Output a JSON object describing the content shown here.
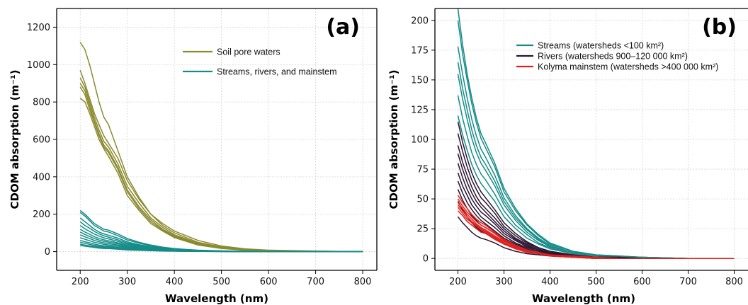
{
  "chart_data": [
    {
      "type": "line",
      "panel_label": "(a)",
      "xlabel": "Wavelength (nm)",
      "ylabel": "CDOM absorption (m⁻¹)",
      "xlim": [
        150,
        830
      ],
      "ylim": [
        -100,
        1300
      ],
      "xticks": [
        200,
        300,
        400,
        500,
        600,
        700,
        800
      ],
      "yticks": [
        0,
        200,
        400,
        600,
        800,
        1000,
        1200
      ],
      "grid": true,
      "legend_position": "top-right",
      "x": [
        200,
        210,
        220,
        230,
        240,
        250,
        260,
        280,
        300,
        325,
        350,
        375,
        400,
        450,
        500,
        550,
        600,
        700,
        800
      ],
      "series": [
        {
          "name": "Soil pore waters",
          "color": "#8a8a2e",
          "curves": [
            [
              1120,
              1080,
              1000,
              900,
              800,
              720,
              680,
              540,
              400,
              290,
              200,
              150,
              110,
              60,
              30,
              15,
              8,
              3,
              0
            ],
            [
              970,
              900,
              820,
              740,
              680,
              620,
              580,
              500,
              380,
              280,
              200,
              140,
              100,
              50,
              25,
              12,
              6,
              2,
              0
            ],
            [
              930,
              880,
              800,
              720,
              650,
              590,
              560,
              470,
              350,
              260,
              180,
              130,
              90,
              45,
              22,
              10,
              5,
              2,
              0
            ],
            [
              900,
              860,
              780,
              700,
              630,
              570,
              540,
              450,
              330,
              240,
              170,
              120,
              85,
              40,
              20,
              9,
              4,
              1,
              0
            ],
            [
              880,
              840,
              760,
              690,
              620,
              560,
              530,
              440,
              320,
              230,
              160,
              115,
              80,
              38,
              18,
              8,
              4,
              1,
              0
            ],
            [
              820,
              800,
              740,
              670,
              600,
              550,
              510,
              420,
              300,
              220,
              150,
              110,
              75,
              35,
              17,
              8,
              4,
              1,
              0
            ]
          ]
        },
        {
          "name": "Streams, rivers, and mainstem",
          "color": "#158c88",
          "curves": [
            [
              220,
              200,
              175,
              150,
              135,
              120,
              115,
              95,
              70,
              50,
              35,
              24,
              16,
              8,
              4,
              2,
              1,
              0,
              0
            ],
            [
              210,
              190,
              165,
              140,
              125,
              110,
              105,
              85,
              62,
              45,
              31,
              21,
              14,
              7,
              3,
              2,
              1,
              0,
              0
            ],
            [
              180,
              160,
              140,
              120,
              105,
              95,
              88,
              72,
              52,
              37,
              26,
              18,
              12,
              6,
              3,
              1,
              1,
              0,
              0
            ],
            [
              160,
              140,
              125,
              108,
              95,
              85,
              78,
              63,
              46,
              33,
              23,
              16,
              11,
              5,
              3,
              1,
              0,
              0,
              0
            ],
            [
              140,
              122,
              108,
              94,
              83,
              74,
              68,
              55,
              40,
              29,
              20,
              14,
              9,
              5,
              2,
              1,
              0,
              0,
              0
            ],
            [
              120,
              105,
              93,
              80,
              71,
              63,
              58,
              47,
              34,
              25,
              17,
              12,
              8,
              4,
              2,
              1,
              0,
              0,
              0
            ],
            [
              105,
              92,
              81,
              70,
              62,
              55,
              51,
              41,
              30,
              22,
              15,
              10,
              7,
              3,
              2,
              1,
              0,
              0,
              0
            ],
            [
              90,
              79,
              70,
              60,
              53,
              47,
              43,
              35,
              25,
              18,
              13,
              9,
              6,
              3,
              1,
              1,
              0,
              0,
              0
            ],
            [
              75,
              66,
              58,
              50,
              44,
              39,
              36,
              29,
              21,
              15,
              11,
              7,
              5,
              2,
              1,
              0,
              0,
              0,
              0
            ],
            [
              60,
              53,
              47,
              40,
              35,
              31,
              29,
              23,
              17,
              12,
              9,
              6,
              4,
              2,
              1,
              0,
              0,
              0,
              0
            ],
            [
              50,
              44,
              39,
              33,
              29,
              26,
              24,
              19,
              14,
              10,
              7,
              5,
              3,
              2,
              1,
              0,
              0,
              0,
              0
            ],
            [
              40,
              35,
              31,
              27,
              24,
              21,
              19,
              15,
              11,
              8,
              6,
              4,
              3,
              1,
              1,
              0,
              0,
              0,
              0
            ],
            [
              33,
              29,
              26,
              22,
              19,
              17,
              16,
              13,
              9,
              7,
              5,
              3,
              2,
              1,
              0,
              0,
              0,
              0,
              0
            ]
          ]
        }
      ]
    },
    {
      "type": "line",
      "panel_label": "(b)",
      "xlabel": "Wavelength (nm)",
      "ylabel": "CDOM absorption (m⁻¹)",
      "xlim": [
        150,
        830
      ],
      "ylim": [
        -10,
        210
      ],
      "xticks": [
        200,
        300,
        400,
        500,
        600,
        700,
        800
      ],
      "yticks": [
        0,
        25,
        50,
        75,
        100,
        125,
        150,
        175,
        200
      ],
      "grid": true,
      "legend_position": "top-right",
      "x": [
        200,
        210,
        220,
        230,
        240,
        250,
        260,
        280,
        300,
        325,
        350,
        375,
        400,
        450,
        500,
        550,
        600,
        700,
        800
      ],
      "series": [
        {
          "name": "Streams (watersheds <100 km²)",
          "color": "#158c88",
          "curves": [
            [
              210,
              180,
              155,
              135,
              118,
              105,
              97,
              80,
              59,
              42,
              29,
              20,
              13,
              6,
              3,
              2,
              1,
              0,
              0
            ],
            [
              200,
              172,
              150,
              130,
              114,
              101,
              93,
              77,
              56,
              40,
              28,
              19,
              12,
              6,
              3,
              2,
              1,
              0,
              0
            ],
            [
              178,
              155,
              135,
              117,
              103,
              92,
              85,
              70,
              51,
              36,
              25,
              17,
              11,
              5,
              3,
              1,
              1,
              0,
              0
            ],
            [
              165,
              143,
              125,
              108,
              95,
              85,
              79,
              65,
              48,
              34,
              24,
              16,
              10,
              5,
              2,
              1,
              1,
              0,
              0
            ],
            [
              155,
              134,
              117,
              101,
              89,
              80,
              74,
              61,
              45,
              32,
              22,
              15,
              10,
              5,
              2,
              1,
              0,
              0,
              0
            ],
            [
              137,
              118,
              103,
              89,
              79,
              71,
              66,
              54,
              40,
              28,
              20,
              13,
              9,
              4,
              2,
              1,
              0,
              0,
              0
            ],
            [
              120,
              104,
              91,
              79,
              70,
              63,
              58,
              48,
              35,
              25,
              17,
              12,
              8,
              4,
              2,
              1,
              0,
              0,
              0
            ]
          ]
        },
        {
          "name": "Rivers (watersheds 900–120 000 km²)",
          "color": "#2a1530",
          "curves": [
            [
              115,
              98,
              84,
              72,
              63,
              56,
              51,
              41,
              30,
              21,
              14,
              9,
              6,
              3,
              1,
              1,
              0,
              0,
              0
            ],
            [
              105,
              90,
              77,
              66,
              58,
              51,
              47,
              38,
              27,
              19,
              13,
              9,
              6,
              3,
              1,
              1,
              0,
              0,
              0
            ],
            [
              95,
              81,
              70,
              60,
              52,
              46,
              42,
              34,
              25,
              17,
              12,
              8,
              5,
              2,
              1,
              0,
              0,
              0,
              0
            ],
            [
              88,
              75,
              64,
              55,
              48,
              43,
              39,
              31,
              23,
              16,
              11,
              7,
              5,
              2,
              1,
              0,
              0,
              0,
              0
            ],
            [
              80,
              68,
              58,
              50,
              44,
              39,
              36,
              29,
              21,
              15,
              10,
              7,
              4,
              2,
              1,
              0,
              0,
              0,
              0
            ],
            [
              72,
              61,
              53,
              45,
              40,
              35,
              32,
              26,
              19,
              13,
              9,
              6,
              4,
              2,
              1,
              0,
              0,
              0,
              0
            ],
            [
              65,
              55,
              47,
              41,
              36,
              32,
              29,
              23,
              17,
              12,
              8,
              5,
              4,
              2,
              1,
              0,
              0,
              0,
              0
            ],
            [
              58,
              49,
              42,
              36,
              32,
              28,
              26,
              21,
              15,
              11,
              7,
              5,
              3,
              1,
              1,
              0,
              0,
              0,
              0
            ],
            [
              48,
              41,
              35,
              30,
              26,
              23,
              21,
              17,
              12,
              9,
              6,
              4,
              3,
              1,
              1,
              0,
              0,
              0,
              0
            ],
            [
              35,
              30,
              26,
              22,
              19,
              17,
              16,
              13,
              9,
              6,
              4,
              3,
              2,
              1,
              0,
              0,
              0,
              0,
              0
            ]
          ]
        },
        {
          "name": "Kolyma mainstem (watersheds >400 000 km²)",
          "color": "#e0201c",
          "curves": [
            [
              53,
              47,
              42,
              37,
              33,
              30,
              28,
              22,
              16,
              11,
              7,
              5,
              3,
              2,
              1,
              0,
              0,
              0,
              0
            ],
            [
              50,
              44,
              39,
              35,
              31,
              28,
              26,
              21,
              15,
              10,
              7,
              5,
              3,
              1,
              1,
              0,
              0,
              0,
              0
            ],
            [
              47,
              42,
              37,
              33,
              29,
              26,
              24,
              19,
              14,
              10,
              6,
              4,
              3,
              1,
              1,
              0,
              0,
              0,
              0
            ],
            [
              45,
              40,
              35,
              31,
              28,
              25,
              23,
              18,
              13,
              9,
              6,
              4,
              3,
              1,
              1,
              0,
              0,
              0,
              0
            ],
            [
              43,
              38,
              33,
              30,
              27,
              24,
              22,
              17,
              12,
              9,
              6,
              4,
              2,
              1,
              0,
              0,
              0,
              0,
              0
            ],
            [
              40,
              36,
              31,
              28,
              25,
              22,
              21,
              16,
              12,
              8,
              5,
              4,
              2,
              1,
              0,
              0,
              0,
              0,
              0
            ]
          ]
        }
      ]
    }
  ]
}
